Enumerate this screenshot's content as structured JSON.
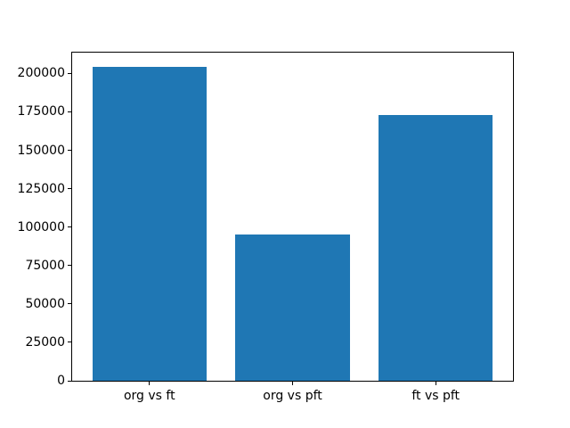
{
  "figure": {
    "background_color": "#ffffff",
    "axes_line_color": "#000000",
    "tick_label_color": "#000000"
  },
  "chart_data": {
    "type": "bar",
    "title": "",
    "xlabel": "",
    "ylabel": "",
    "categories": [
      "org vs ft",
      "org vs pft",
      "ft vs pft"
    ],
    "values": [
      204000,
      95000,
      173000
    ],
    "bar_color": "#1f77b4",
    "bar_width_units": 0.8,
    "xlim": [
      -0.54,
      2.54
    ],
    "ylim": [
      0,
      213500
    ],
    "yticks": [
      0,
      25000,
      50000,
      75000,
      100000,
      125000,
      150000,
      175000,
      200000
    ],
    "grid": false,
    "legend": "none"
  }
}
